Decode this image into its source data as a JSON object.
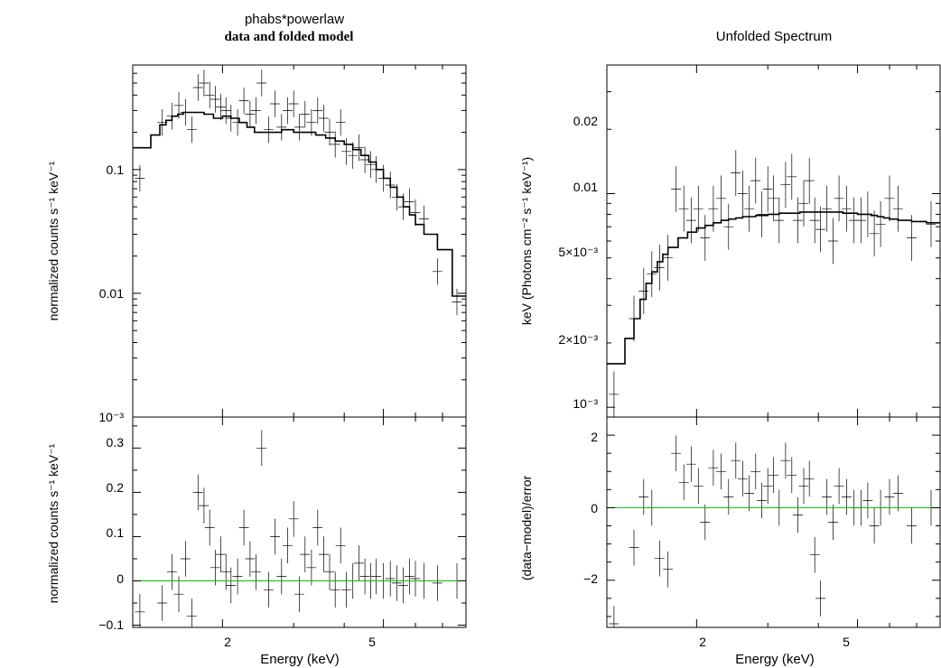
{
  "left": {
    "title": "phabs*powerlaw",
    "subtitle": "data and folded model",
    "xlabel": "Energy (keV)",
    "top_ylabel": "normalized counts s⁻¹ keV⁻¹",
    "bottom_ylabel": "normalized counts s⁻¹ keV⁻¹",
    "top_tick_labels": [
      "0.1",
      "0.01",
      "10⁻³"
    ],
    "bottom_tick_labels": [
      "0.3",
      "0.2",
      "0.1",
      "0",
      "−0.1"
    ],
    "x_tick_labels": [
      "2",
      "5"
    ]
  },
  "right": {
    "title": "Unfolded Spectrum",
    "xlabel": "Energy (keV)",
    "top_ylabel": "keV (Photons cm⁻² s⁻¹ keV⁻¹)",
    "bottom_ylabel": "(data−model)/error",
    "top_tick_labels": [
      "0.02",
      "0.01",
      "5×10⁻³",
      "2×10⁻³",
      "10⁻³"
    ],
    "bottom_tick_labels": [
      "2",
      "0",
      "−2"
    ],
    "x_tick_labels": [
      "2",
      "5"
    ]
  },
  "chart_data": [
    {
      "type": "scatter",
      "title": "phabs*powerlaw",
      "subtitle": "data and folded model",
      "xlabel": "",
      "ylabel": "normalized counts s⁻¹ keV⁻¹",
      "xscale": "log",
      "yscale": "log",
      "xlim": [
        1.2,
        8.0
      ],
      "ylim": [
        0.001,
        0.7
      ],
      "series": [
        {
          "name": "",
          "x": [
            1.25,
            1.42,
            1.5,
            1.56,
            1.62,
            1.68,
            1.74,
            1.8,
            1.86,
            1.92,
            1.98,
            2.04,
            2.1,
            2.18,
            2.26,
            2.34,
            2.42,
            2.5,
            2.6,
            2.7,
            2.8,
            2.9,
            3.0,
            3.1,
            3.2,
            3.32,
            3.44,
            3.56,
            3.68,
            3.8,
            3.92,
            4.05,
            4.2,
            4.35,
            4.5,
            4.65,
            4.8,
            5.0,
            5.2,
            5.4,
            5.6,
            5.8,
            6.0,
            6.3,
            6.8,
            7.6
          ],
          "y": [
            0.085,
            0.24,
            0.27,
            0.33,
            0.29,
            0.21,
            0.46,
            0.5,
            0.4,
            0.37,
            0.32,
            0.3,
            0.26,
            0.24,
            0.36,
            0.28,
            0.3,
            0.5,
            0.21,
            0.34,
            0.22,
            0.3,
            0.34,
            0.22,
            0.28,
            0.24,
            0.3,
            0.26,
            0.2,
            0.16,
            0.24,
            0.14,
            0.13,
            0.15,
            0.12,
            0.11,
            0.1,
            0.085,
            0.075,
            0.06,
            0.05,
            0.055,
            0.045,
            0.04,
            0.015,
            0.0085
          ]
        },
        {
          "name": "",
          "type": "step",
          "x": [
            1.2,
            1.33,
            1.4,
            1.45,
            1.5,
            1.55,
            1.6,
            1.65,
            1.7,
            1.8,
            1.9,
            2.0,
            2.1,
            2.2,
            2.3,
            2.4,
            2.5,
            2.6,
            2.8,
            3.0,
            3.2,
            3.4,
            3.6,
            3.8,
            4.0,
            4.2,
            4.4,
            4.6,
            4.8,
            5.0,
            5.2,
            5.4,
            5.6,
            5.8,
            6.0,
            6.3,
            6.8,
            7.4,
            8.0
          ],
          "y": [
            0.15,
            0.19,
            0.23,
            0.25,
            0.27,
            0.28,
            0.29,
            0.29,
            0.29,
            0.28,
            0.26,
            0.27,
            0.26,
            0.24,
            0.22,
            0.2,
            0.2,
            0.2,
            0.21,
            0.2,
            0.2,
            0.19,
            0.18,
            0.17,
            0.16,
            0.145,
            0.13,
            0.115,
            0.1,
            0.085,
            0.072,
            0.06,
            0.05,
            0.043,
            0.036,
            0.03,
            0.0225,
            0.0095,
            0.0095
          ]
        }
      ]
    },
    {
      "type": "scatter",
      "title": "",
      "xlabel": "Energy (keV)",
      "ylabel": "normalized counts s⁻¹ keV⁻¹",
      "xscale": "log",
      "xlim": [
        1.2,
        8.0
      ],
      "ylim": [
        -0.105,
        0.37
      ],
      "series": [
        {
          "name": "",
          "x": [
            1.25,
            1.42,
            1.5,
            1.56,
            1.62,
            1.68,
            1.74,
            1.8,
            1.86,
            1.92,
            1.98,
            2.04,
            2.1,
            2.18,
            2.26,
            2.34,
            2.42,
            2.5,
            2.6,
            2.7,
            2.8,
            2.9,
            3.0,
            3.1,
            3.2,
            3.32,
            3.44,
            3.56,
            3.68,
            3.8,
            3.92,
            4.05,
            4.2,
            4.35,
            4.5,
            4.65,
            4.8,
            5.0,
            5.2,
            5.4,
            5.6,
            5.8,
            6.0,
            6.3,
            6.8,
            7.6
          ],
          "y": [
            -0.07,
            -0.05,
            0.02,
            -0.03,
            0.05,
            -0.08,
            0.2,
            0.17,
            0.12,
            0.03,
            0.06,
            0.02,
            -0.01,
            0.01,
            0.12,
            0.05,
            0.02,
            0.3,
            -0.02,
            0.1,
            0.01,
            0.08,
            0.14,
            -0.03,
            0.06,
            0.03,
            0.12,
            0.06,
            0.02,
            -0.02,
            0.08,
            -0.02,
            0.0,
            0.04,
            0.01,
            0.0,
            0.01,
            0.0,
            0.005,
            -0.005,
            -0.01,
            0.01,
            0.005,
            0.0,
            -0.005,
            0.0
          ]
        },
        {
          "name": "",
          "type": "line",
          "x": [
            1.2,
            8.0
          ],
          "y": [
            0,
            0
          ]
        }
      ]
    },
    {
      "type": "scatter",
      "title": "Unfolded Spectrum",
      "xlabel": "",
      "ylabel": "keV (Photons cm⁻² s⁻¹ keV⁻¹)",
      "xscale": "log",
      "yscale": "log",
      "xlim": [
        1.2,
        8.0
      ],
      "ylim": [
        0.0009,
        0.04
      ],
      "series": [
        {
          "name": "",
          "x": [
            1.25,
            1.4,
            1.48,
            1.55,
            1.62,
            1.7,
            1.78,
            1.86,
            1.94,
            2.02,
            2.1,
            2.2,
            2.3,
            2.4,
            2.5,
            2.6,
            2.7,
            2.8,
            2.9,
            3.0,
            3.1,
            3.2,
            3.32,
            3.44,
            3.56,
            3.68,
            3.8,
            3.92,
            4.05,
            4.2,
            4.35,
            4.5,
            4.7,
            4.9,
            5.1,
            5.3,
            5.5,
            5.7,
            6.0,
            6.3,
            6.8,
            7.6
          ],
          "y": [
            0.00115,
            0.0026,
            0.0035,
            0.0042,
            0.0045,
            0.005,
            0.0105,
            0.0085,
            0.0075,
            0.0085,
            0.0062,
            0.0085,
            0.0095,
            0.007,
            0.0125,
            0.01,
            0.0085,
            0.0115,
            0.008,
            0.0105,
            0.0095,
            0.0075,
            0.011,
            0.012,
            0.0075,
            0.009,
            0.0115,
            0.0075,
            0.0068,
            0.0085,
            0.006,
            0.0095,
            0.0085,
            0.0075,
            0.0075,
            0.008,
            0.0065,
            0.0072,
            0.0095,
            0.0085,
            0.0062,
            0.0072
          ]
        },
        {
          "name": "",
          "type": "step",
          "x": [
            1.2,
            1.33,
            1.4,
            1.45,
            1.5,
            1.55,
            1.6,
            1.65,
            1.7,
            1.8,
            1.9,
            2.0,
            2.1,
            2.2,
            2.3,
            2.4,
            2.5,
            2.6,
            2.8,
            3.0,
            3.2,
            3.4,
            3.6,
            3.8,
            4.0,
            4.2,
            4.4,
            4.6,
            4.8,
            5.0,
            5.2,
            5.4,
            5.6,
            5.8,
            6.0,
            6.3,
            6.8,
            7.4,
            8.0
          ],
          "y": [
            0.0016,
            0.0021,
            0.0026,
            0.0032,
            0.0038,
            0.0043,
            0.0048,
            0.0052,
            0.0056,
            0.0062,
            0.0066,
            0.0069,
            0.0071,
            0.0073,
            0.0075,
            0.0076,
            0.0077,
            0.0078,
            0.0079,
            0.008,
            0.0081,
            0.0081,
            0.0082,
            0.0082,
            0.0082,
            0.0082,
            0.0082,
            0.0081,
            0.0081,
            0.008,
            0.008,
            0.0079,
            0.0078,
            0.0077,
            0.0076,
            0.0075,
            0.0074,
            0.0073,
            0.0073
          ]
        }
      ]
    },
    {
      "type": "scatter",
      "title": "",
      "xlabel": "Energy (keV)",
      "ylabel": "(data−model)/error",
      "xscale": "log",
      "xlim": [
        1.2,
        8.0
      ],
      "ylim": [
        -3.3,
        2.5
      ],
      "series": [
        {
          "name": "",
          "x": [
            1.25,
            1.4,
            1.48,
            1.55,
            1.62,
            1.7,
            1.78,
            1.86,
            1.94,
            2.02,
            2.1,
            2.2,
            2.3,
            2.4,
            2.5,
            2.6,
            2.7,
            2.8,
            2.9,
            3.0,
            3.1,
            3.2,
            3.32,
            3.44,
            3.56,
            3.68,
            3.8,
            3.92,
            4.05,
            4.2,
            4.35,
            4.5,
            4.7,
            4.9,
            5.1,
            5.3,
            5.5,
            5.7,
            6.0,
            6.3,
            6.8,
            7.6
          ],
          "y": [
            -3.2,
            -1.1,
            0.3,
            0.0,
            -1.4,
            -1.7,
            1.5,
            0.7,
            1.2,
            0.6,
            -0.4,
            1.1,
            1.0,
            0.3,
            1.3,
            0.8,
            0.4,
            1.0,
            0.2,
            0.6,
            0.9,
            0.0,
            1.3,
            0.9,
            -0.2,
            0.6,
            0.8,
            -1.3,
            -2.5,
            0.3,
            -0.4,
            0.6,
            0.3,
            0.0,
            0.0,
            0.2,
            -0.5,
            0.0,
            0.3,
            0.4,
            -0.5,
            0.0
          ]
        },
        {
          "name": "",
          "type": "line",
          "x": [
            1.2,
            8.0
          ],
          "y": [
            0,
            0
          ]
        }
      ]
    }
  ]
}
